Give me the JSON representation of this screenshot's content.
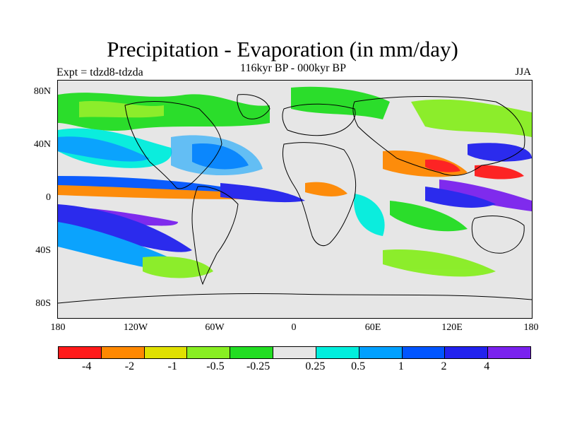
{
  "title": "Precipitation - Evaporation (in mm/day)",
  "subtitle": "116kyr BP - 000kyr BP",
  "expt_label": "Expt = tdzd8-tdzda",
  "season": "JJA",
  "map": {
    "y_ticks": [
      "80N",
      "40N",
      "0",
      "40S",
      "80S"
    ],
    "x_ticks": [
      "180",
      "120W",
      "60W",
      "0",
      "60E",
      "120E",
      "180"
    ],
    "background_color": "#e6e6e6"
  },
  "colorbar": {
    "colors": [
      "#ff1a1a",
      "#ff8800",
      "#e0e000",
      "#88ee22",
      "#22dd22",
      "#e6e6e6",
      "#00eedd",
      "#00a0ff",
      "#0055ff",
      "#2222ee",
      "#7a22ee"
    ],
    "labels": [
      "-4",
      "-2",
      "-1",
      "-0.5",
      "-0.25",
      "0.25",
      "0.5",
      "1",
      "2",
      "4"
    ]
  }
}
